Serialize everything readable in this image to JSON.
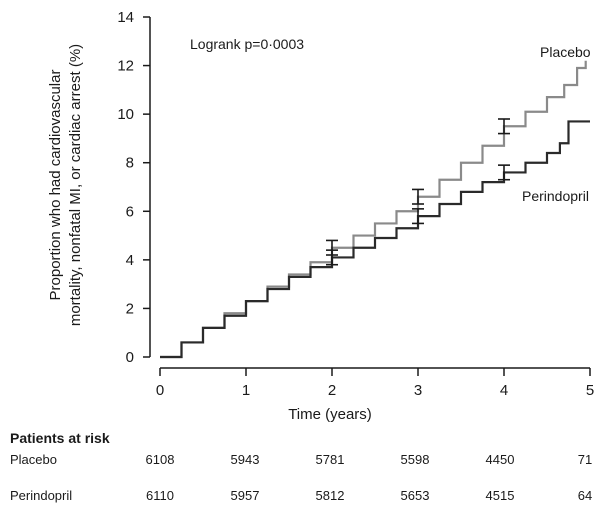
{
  "chart_data": {
    "type": "line",
    "annotation": "Logrank p=0·0003",
    "xlabel": "Time (years)",
    "ylabel_line1": "Proportion who had cardiovascular",
    "ylabel_line2": "mortality, nonfatal MI, or cardiac arrest (%)",
    "xlim": [
      0,
      5
    ],
    "ylim": [
      0,
      14
    ],
    "x_ticks": [
      "0",
      "1",
      "2",
      "3",
      "4",
      "5"
    ],
    "y_ticks": [
      "0",
      "2",
      "4",
      "6",
      "8",
      "10",
      "12",
      "14"
    ],
    "series": [
      {
        "name": "Placebo",
        "color": "#8a8a8a",
        "x": [
          0,
          0.25,
          0.5,
          0.75,
          1.0,
          1.25,
          1.5,
          1.75,
          2.0,
          2.25,
          2.5,
          2.75,
          3.0,
          3.25,
          3.5,
          3.75,
          4.0,
          4.25,
          4.5,
          4.7,
          4.85,
          4.95
        ],
        "y": [
          0,
          0.6,
          1.2,
          1.8,
          2.3,
          2.9,
          3.4,
          3.9,
          4.5,
          5.0,
          5.5,
          6.0,
          6.6,
          7.3,
          8.0,
          8.7,
          9.5,
          10.1,
          10.7,
          11.2,
          11.9,
          12.2
        ]
      },
      {
        "name": "Perindopril",
        "color": "#2a2a2a",
        "x": [
          0,
          0.25,
          0.5,
          0.75,
          1.0,
          1.25,
          1.5,
          1.75,
          2.0,
          2.25,
          2.5,
          2.75,
          3.0,
          3.25,
          3.5,
          3.75,
          4.0,
          4.25,
          4.5,
          4.65,
          4.75,
          5.0
        ],
        "y": [
          0,
          0.6,
          1.2,
          1.7,
          2.3,
          2.8,
          3.3,
          3.7,
          4.1,
          4.5,
          4.9,
          5.3,
          5.8,
          6.3,
          6.8,
          7.2,
          7.6,
          8.0,
          8.4,
          8.8,
          9.7,
          9.7
        ]
      }
    ],
    "error_bars": [
      {
        "series": "Placebo",
        "x": 2,
        "y": 4.5,
        "lo": 4.2,
        "hi": 4.8
      },
      {
        "series": "Placebo",
        "x": 3,
        "y": 6.6,
        "lo": 6.3,
        "hi": 6.9
      },
      {
        "series": "Placebo",
        "x": 4,
        "y": 9.5,
        "lo": 9.2,
        "hi": 9.8
      },
      {
        "series": "Perindopril",
        "x": 2,
        "y": 4.1,
        "lo": 3.8,
        "hi": 4.4
      },
      {
        "series": "Perindopril",
        "x": 3,
        "y": 5.8,
        "lo": 5.5,
        "hi": 6.1
      },
      {
        "series": "Perindopril",
        "x": 4,
        "y": 7.6,
        "lo": 7.3,
        "hi": 7.9
      }
    ]
  },
  "risk_table": {
    "title": "Patients at risk",
    "rows": [
      {
        "label": "Placebo",
        "values": [
          "6108",
          "5943",
          "5781",
          "5598",
          "4450",
          "71"
        ]
      },
      {
        "label": "Perindopril",
        "values": [
          "6110",
          "5957",
          "5812",
          "5653",
          "4515",
          "64"
        ]
      }
    ]
  }
}
